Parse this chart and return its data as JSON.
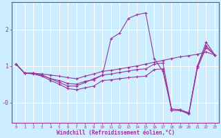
{
  "xlabel": "Windchill (Refroidissement éolien,°C)",
  "background_color": "#cceeff",
  "line_color": "#993399",
  "grid_color": "#ffffff",
  "x": [
    0,
    1,
    2,
    3,
    4,
    5,
    6,
    7,
    8,
    9,
    10,
    11,
    12,
    13,
    14,
    15,
    16,
    17,
    18,
    19,
    20,
    21,
    22,
    23
  ],
  "lines": [
    [
      1.05,
      0.8,
      0.8,
      0.75,
      0.65,
      0.55,
      0.45,
      0.45,
      0.55,
      0.65,
      0.75,
      1.75,
      1.9,
      2.3,
      2.4,
      2.45,
      1.2,
      0.85,
      -0.18,
      -0.2,
      -0.3,
      1.0,
      1.65,
      1.3
    ],
    [
      1.05,
      0.8,
      0.8,
      0.78,
      0.75,
      0.72,
      0.68,
      0.65,
      0.72,
      0.78,
      0.85,
      0.88,
      0.92,
      0.96,
      1.0,
      1.05,
      1.1,
      1.15,
      1.2,
      1.25,
      1.28,
      1.32,
      1.38,
      1.3
    ],
    [
      1.05,
      0.8,
      0.8,
      0.75,
      0.65,
      0.6,
      0.52,
      0.5,
      0.58,
      0.62,
      0.75,
      0.78,
      0.82,
      0.86,
      0.9,
      0.92,
      1.05,
      1.08,
      -0.18,
      -0.2,
      -0.28,
      1.0,
      1.55,
      1.3
    ],
    [
      1.05,
      0.8,
      0.78,
      0.72,
      0.6,
      0.5,
      0.38,
      0.35,
      0.4,
      0.45,
      0.6,
      0.62,
      0.65,
      0.68,
      0.7,
      0.72,
      0.9,
      0.92,
      -0.22,
      -0.22,
      -0.32,
      0.95,
      1.5,
      1.3
    ]
  ],
  "ylim": [
    -0.55,
    2.75
  ],
  "xlim": [
    -0.5,
    23.5
  ],
  "ytick_positions": [
    0.0,
    1.0,
    2.0
  ],
  "ytick_labels": [
    "-0",
    "1",
    "2"
  ],
  "figsize": [
    3.2,
    2.0
  ],
  "dpi": 100
}
